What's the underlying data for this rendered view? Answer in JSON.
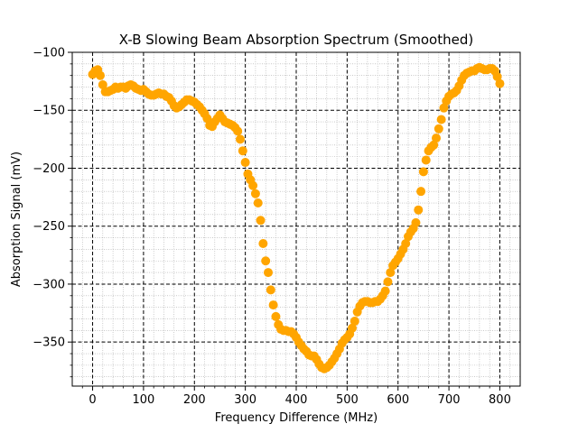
{
  "chart_data": {
    "type": "scatter",
    "title": "X-B Slowing Beam Absorption Spectrum (Smoothed)",
    "xlabel": "Frequency Difference (MHz)",
    "ylabel": "Absorption Signal (mV)",
    "xlim": [
      -40,
      840
    ],
    "ylim": [
      -388,
      -100
    ],
    "x_ticks": [
      0,
      100,
      200,
      300,
      400,
      500,
      600,
      700,
      800
    ],
    "x_tick_labels": [
      "0",
      "100",
      "200",
      "300",
      "400",
      "500",
      "600",
      "700",
      "800"
    ],
    "y_ticks": [
      -350,
      -300,
      -250,
      -200,
      -150,
      -100
    ],
    "y_tick_labels": [
      "−350",
      "−300",
      "−250",
      "−200",
      "−150",
      "−100"
    ],
    "grid": true,
    "major_grid_style": "black dashed",
    "minor_grid_style": "gray dotted",
    "marker_color": "#ffa500",
    "series": [
      {
        "points": [
          [
            0,
            -119
          ],
          [
            5,
            -116
          ],
          [
            10,
            -115
          ],
          [
            15,
            -120
          ],
          [
            20,
            -128
          ],
          [
            25,
            -134
          ],
          [
            30,
            -134
          ],
          [
            35,
            -133
          ],
          [
            40,
            -132
          ],
          [
            45,
            -130
          ],
          [
            50,
            -131
          ],
          [
            55,
            -130
          ],
          [
            60,
            -130
          ],
          [
            65,
            -131
          ],
          [
            70,
            -129
          ],
          [
            75,
            -128
          ],
          [
            80,
            -129
          ],
          [
            85,
            -131
          ],
          [
            90,
            -132
          ],
          [
            95,
            -133
          ],
          [
            100,
            -132
          ],
          [
            105,
            -134
          ],
          [
            110,
            -136
          ],
          [
            115,
            -137
          ],
          [
            120,
            -137
          ],
          [
            125,
            -136
          ],
          [
            130,
            -135
          ],
          [
            135,
            -136
          ],
          [
            140,
            -136
          ],
          [
            145,
            -138
          ],
          [
            150,
            -139
          ],
          [
            155,
            -142
          ],
          [
            160,
            -146
          ],
          [
            165,
            -148
          ],
          [
            170,
            -147
          ],
          [
            175,
            -145
          ],
          [
            180,
            -143
          ],
          [
            185,
            -141
          ],
          [
            190,
            -141
          ],
          [
            195,
            -142
          ],
          [
            200,
            -143
          ],
          [
            205,
            -145
          ],
          [
            210,
            -147
          ],
          [
            215,
            -150
          ],
          [
            220,
            -153
          ],
          [
            225,
            -157
          ],
          [
            230,
            -163
          ],
          [
            235,
            -164
          ],
          [
            240,
            -160
          ],
          [
            245,
            -157
          ],
          [
            250,
            -154
          ],
          [
            255,
            -157
          ],
          [
            260,
            -160
          ],
          [
            265,
            -161
          ],
          [
            270,
            -162
          ],
          [
            275,
            -163
          ],
          [
            280,
            -165
          ],
          [
            285,
            -168
          ],
          [
            290,
            -175
          ],
          [
            295,
            -185
          ],
          [
            300,
            -195
          ],
          [
            305,
            -205
          ],
          [
            310,
            -210
          ],
          [
            315,
            -215
          ],
          [
            320,
            -222
          ],
          [
            325,
            -230
          ],
          [
            330,
            -245
          ],
          [
            335,
            -265
          ],
          [
            340,
            -280
          ],
          [
            345,
            -290
          ],
          [
            350,
            -305
          ],
          [
            355,
            -318
          ],
          [
            360,
            -328
          ],
          [
            365,
            -335
          ],
          [
            370,
            -339
          ],
          [
            375,
            -340
          ],
          [
            380,
            -340
          ],
          [
            385,
            -341
          ],
          [
            390,
            -341
          ],
          [
            395,
            -343
          ],
          [
            400,
            -346
          ],
          [
            405,
            -350
          ],
          [
            410,
            -353
          ],
          [
            415,
            -356
          ],
          [
            420,
            -358
          ],
          [
            425,
            -361
          ],
          [
            430,
            -362
          ],
          [
            435,
            -362
          ],
          [
            440,
            -365
          ],
          [
            445,
            -369
          ],
          [
            450,
            -372
          ],
          [
            455,
            -373
          ],
          [
            460,
            -372
          ],
          [
            465,
            -370
          ],
          [
            470,
            -367
          ],
          [
            475,
            -364
          ],
          [
            480,
            -360
          ],
          [
            485,
            -356
          ],
          [
            490,
            -351
          ],
          [
            495,
            -348
          ],
          [
            500,
            -346
          ],
          [
            505,
            -343
          ],
          [
            510,
            -338
          ],
          [
            515,
            -332
          ],
          [
            520,
            -324
          ],
          [
            525,
            -319
          ],
          [
            530,
            -316
          ],
          [
            535,
            -315
          ],
          [
            540,
            -315
          ],
          [
            545,
            -316
          ],
          [
            550,
            -316
          ],
          [
            555,
            -315
          ],
          [
            560,
            -315
          ],
          [
            565,
            -313
          ],
          [
            570,
            -310
          ],
          [
            575,
            -306
          ],
          [
            580,
            -298
          ],
          [
            585,
            -290
          ],
          [
            590,
            -284
          ],
          [
            595,
            -281
          ],
          [
            600,
            -278
          ],
          [
            605,
            -274
          ],
          [
            610,
            -270
          ],
          [
            615,
            -265
          ],
          [
            620,
            -259
          ],
          [
            625,
            -255
          ],
          [
            630,
            -252
          ],
          [
            635,
            -247
          ],
          [
            640,
            -236
          ],
          [
            645,
            -220
          ],
          [
            650,
            -203
          ],
          [
            655,
            -193
          ],
          [
            660,
            -185
          ],
          [
            665,
            -182
          ],
          [
            670,
            -180
          ],
          [
            675,
            -174
          ],
          [
            680,
            -166
          ],
          [
            685,
            -158
          ],
          [
            690,
            -148
          ],
          [
            695,
            -142
          ],
          [
            700,
            -138
          ],
          [
            705,
            -136
          ],
          [
            710,
            -135
          ],
          [
            715,
            -133
          ],
          [
            720,
            -129
          ],
          [
            725,
            -124
          ],
          [
            730,
            -120
          ],
          [
            735,
            -118
          ],
          [
            740,
            -117
          ],
          [
            745,
            -116
          ],
          [
            750,
            -116
          ],
          [
            755,
            -114
          ],
          [
            760,
            -113
          ],
          [
            765,
            -114
          ],
          [
            770,
            -115
          ],
          [
            775,
            -115
          ],
          [
            780,
            -114
          ],
          [
            785,
            -114
          ],
          [
            790,
            -116
          ],
          [
            795,
            -121
          ],
          [
            800,
            -127
          ]
        ]
      }
    ]
  }
}
